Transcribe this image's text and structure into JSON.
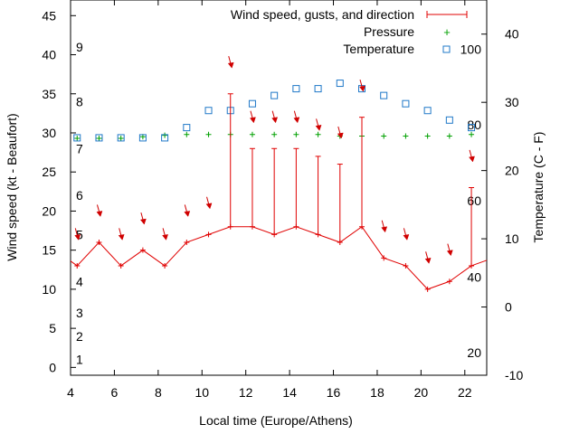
{
  "chart_data": {
    "type": "line",
    "xlabel": "Local time (Europe/Athens)",
    "ylabel": "Wind speed (kt - Beaufort)",
    "y2label": "Temperature (C - F)",
    "xlim": [
      4,
      23
    ],
    "ylim": [
      -1,
      47
    ],
    "y2lim": [
      -10,
      45
    ],
    "x_ticks": [
      4,
      6,
      8,
      10,
      12,
      14,
      16,
      18,
      20,
      22
    ],
    "y_ticks": [
      0,
      5,
      10,
      15,
      20,
      25,
      30,
      35,
      40,
      45
    ],
    "y2_ticks": [
      -10,
      0,
      10,
      20,
      30,
      40
    ],
    "beaufort_labels": [
      {
        "label": "1",
        "kt": 1
      },
      {
        "label": "2",
        "kt": 4
      },
      {
        "label": "3",
        "kt": 7
      },
      {
        "label": "4",
        "kt": 11
      },
      {
        "label": "5",
        "kt": 17
      },
      {
        "label": "6",
        "kt": 22
      },
      {
        "label": "7",
        "kt": 28
      },
      {
        "label": "8",
        "kt": 34
      },
      {
        "label": "9",
        "kt": 41
      }
    ],
    "fahrenheit_labels": [
      {
        "label": "20",
        "c": -6.7
      },
      {
        "label": "40",
        "c": 4.4
      },
      {
        "label": "60",
        "c": 15.6
      },
      {
        "label": "80",
        "c": 26.7
      },
      {
        "label": "100",
        "c": 37.8
      }
    ],
    "legend": [
      {
        "label": "Wind speed, gusts, and direction",
        "color": "#e00000"
      },
      {
        "label": "Pressure",
        "color": "#00a000"
      },
      {
        "label": "Temperature",
        "color": "#1f78c8"
      }
    ],
    "series": [
      {
        "name": "Wind speed, gusts, and direction",
        "x": [
          3.3,
          4.3,
          5.3,
          6.3,
          7.3,
          8.3,
          9.3,
          10.3,
          11.3,
          12.3,
          13.3,
          14.3,
          15.3,
          16.3,
          17.3,
          18.3,
          19.3,
          20.3,
          21.3,
          22.3,
          23.3
        ],
        "speed": [
          15,
          13,
          16,
          13,
          15,
          13,
          16,
          17,
          18,
          18,
          17,
          18,
          17,
          16,
          18,
          14,
          13,
          10,
          11,
          13,
          14
        ],
        "gust": [
          null,
          null,
          null,
          null,
          null,
          null,
          null,
          null,
          35,
          28,
          28,
          28,
          27,
          26,
          32,
          null,
          null,
          null,
          null,
          23,
          null
        ],
        "arrow_kt": [
          null,
          17,
          20,
          17,
          19,
          17,
          20,
          21,
          39,
          32,
          32,
          32,
          31,
          30,
          36,
          18,
          17,
          14,
          15,
          27,
          null
        ]
      },
      {
        "name": "Pressure",
        "x": [
          4.3,
          5.3,
          6.3,
          7.3,
          8.3,
          9.3,
          10.3,
          11.3,
          12.3,
          13.3,
          14.3,
          15.3,
          16.3,
          17.3,
          18.3,
          19.3,
          20.3,
          21.3,
          22.3
        ],
        "y": [
          29.3,
          29.3,
          29.3,
          29.5,
          29.7,
          29.8,
          29.8,
          29.8,
          29.8,
          29.8,
          29.8,
          29.8,
          29.6,
          29.6,
          29.6,
          29.6,
          29.6,
          29.6,
          29.8
        ]
      },
      {
        "name": "Temperature",
        "x": [
          4.3,
          5.3,
          6.3,
          7.3,
          8.3,
          9.3,
          10.3,
          11.3,
          12.3,
          13.3,
          14.3,
          15.3,
          16.3,
          17.3,
          18.3,
          19.3,
          20.3,
          21.3,
          22.3
        ],
        "y": [
          24.8,
          24.8,
          24.8,
          24.8,
          24.8,
          26.3,
          28.8,
          28.8,
          29.8,
          31.0,
          32.0,
          32.0,
          32.8,
          32.0,
          31.0,
          29.8,
          28.8,
          27.4,
          26.3
        ]
      }
    ]
  }
}
